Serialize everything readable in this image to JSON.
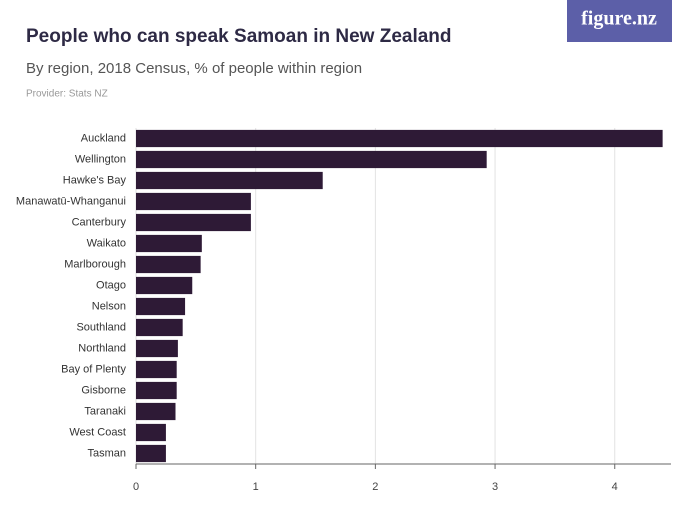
{
  "brand": "figure.nz",
  "chart_data": {
    "type": "hbar",
    "title": "People who can speak Samoan in New Zealand",
    "subtitle": "By region, 2018 Census, % of people within region",
    "provider": "Provider: Stats NZ",
    "categories": [
      "Auckland",
      "Wellington",
      "Hawke's Bay",
      "Manawatū-Whanganui",
      "Canterbury",
      "Waikato",
      "Marlborough",
      "Otago",
      "Nelson",
      "Southland",
      "Northland",
      "Bay of Plenty",
      "Gisborne",
      "Taranaki",
      "West Coast",
      "Tasman"
    ],
    "values": [
      4.4,
      2.93,
      1.56,
      0.96,
      0.96,
      0.55,
      0.54,
      0.47,
      0.41,
      0.39,
      0.35,
      0.34,
      0.34,
      0.33,
      0.25,
      0.25
    ],
    "color": "#2e1a36",
    "xlim": [
      0,
      4.47
    ],
    "xticks": [
      0,
      1,
      2,
      3,
      4
    ],
    "grid": true
  }
}
